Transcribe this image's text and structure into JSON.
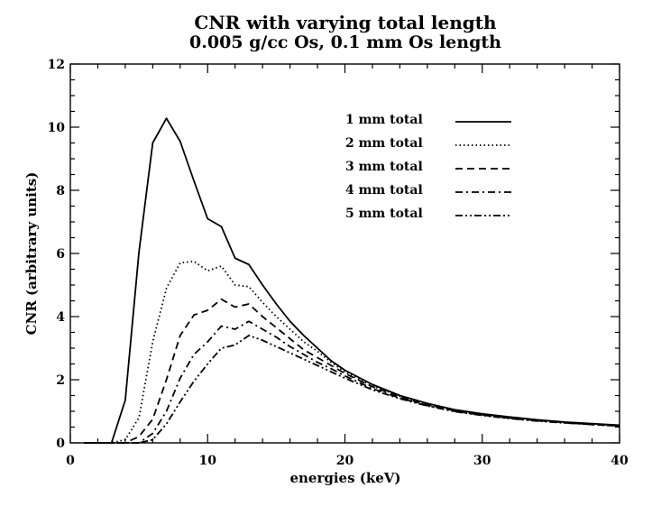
{
  "chart_data": {
    "type": "line",
    "title": "CNR with varying total length",
    "subtitle": "0.005 g/cc Os, 0.1 mm Os length",
    "xlabel": "energies (keV)",
    "ylabel": "CNR (arbitrary units)",
    "xlim": [
      0,
      40
    ],
    "ylim": [
      0,
      12
    ],
    "xticks": [
      0,
      10,
      20,
      30,
      40
    ],
    "yticks": [
      0,
      2,
      4,
      6,
      8,
      10,
      12
    ],
    "grid": false,
    "legend_position": "top-right",
    "series": [
      {
        "name": "1 mm total",
        "dash": "solid",
        "x": [
          1,
          2,
          3,
          4,
          5,
          6,
          7,
          8,
          9,
          10,
          11,
          12,
          13,
          14,
          15,
          16,
          17,
          18,
          19,
          20,
          22,
          24,
          26,
          28,
          30,
          32,
          34,
          36,
          38,
          40
        ],
        "y": [
          0,
          0,
          0,
          1.35,
          6.05,
          9.5,
          10.28,
          9.55,
          8.3,
          7.1,
          6.85,
          5.85,
          5.65,
          5.0,
          4.4,
          3.85,
          3.4,
          3.0,
          2.6,
          2.3,
          1.85,
          1.5,
          1.25,
          1.05,
          0.92,
          0.82,
          0.73,
          0.66,
          0.61,
          0.56
        ]
      },
      {
        "name": "2 mm total",
        "dash": "dotted",
        "x": [
          1,
          2,
          3,
          4,
          5,
          6,
          7,
          8,
          9,
          10,
          11,
          12,
          13,
          14,
          15,
          16,
          17,
          18,
          19,
          20,
          22,
          24,
          26,
          28,
          30,
          32,
          34,
          36,
          38,
          40
        ],
        "y": [
          0,
          0,
          0,
          0.1,
          0.8,
          3.2,
          4.9,
          5.7,
          5.75,
          5.45,
          5.6,
          5.0,
          4.95,
          4.45,
          4.0,
          3.6,
          3.2,
          2.9,
          2.55,
          2.25,
          1.8,
          1.48,
          1.22,
          1.03,
          0.9,
          0.8,
          0.72,
          0.65,
          0.6,
          0.55
        ]
      },
      {
        "name": "3 mm total",
        "dash": "dashed",
        "x": [
          1,
          2,
          3,
          4,
          5,
          6,
          7,
          8,
          9,
          10,
          11,
          12,
          13,
          14,
          15,
          16,
          17,
          18,
          19,
          20,
          22,
          24,
          26,
          28,
          30,
          32,
          34,
          36,
          38,
          40
        ],
        "y": [
          0,
          0,
          0,
          0,
          0.2,
          0.75,
          2.0,
          3.4,
          4.05,
          4.2,
          4.55,
          4.3,
          4.4,
          4.0,
          3.65,
          3.3,
          2.95,
          2.7,
          2.45,
          2.2,
          1.78,
          1.45,
          1.2,
          1.02,
          0.89,
          0.79,
          0.71,
          0.64,
          0.59,
          0.54
        ]
      },
      {
        "name": "4 mm total",
        "dash": "dash-dot",
        "x": [
          1,
          2,
          3,
          4,
          5,
          6,
          7,
          8,
          9,
          10,
          11,
          12,
          13,
          14,
          15,
          16,
          17,
          18,
          19,
          20,
          22,
          24,
          26,
          28,
          30,
          32,
          34,
          36,
          38,
          40
        ],
        "y": [
          0,
          0,
          0,
          0,
          0,
          0.3,
          1.0,
          2.05,
          2.8,
          3.2,
          3.7,
          3.6,
          3.85,
          3.6,
          3.35,
          3.05,
          2.8,
          2.55,
          2.35,
          2.12,
          1.72,
          1.42,
          1.18,
          1.0,
          0.88,
          0.78,
          0.7,
          0.64,
          0.58,
          0.54
        ]
      },
      {
        "name": "5 mm total",
        "dash": "dash-dot-dot",
        "x": [
          1,
          2,
          3,
          4,
          5,
          6,
          7,
          8,
          9,
          10,
          11,
          12,
          13,
          14,
          15,
          16,
          17,
          18,
          19,
          20,
          22,
          24,
          26,
          28,
          30,
          32,
          34,
          36,
          38,
          40
        ],
        "y": [
          0,
          0,
          0,
          0,
          0,
          0.1,
          0.6,
          1.3,
          1.95,
          2.5,
          3.0,
          3.1,
          3.4,
          3.25,
          3.05,
          2.85,
          2.65,
          2.45,
          2.25,
          2.05,
          1.68,
          1.4,
          1.17,
          0.99,
          0.87,
          0.77,
          0.69,
          0.63,
          0.58,
          0.53
        ]
      }
    ]
  }
}
